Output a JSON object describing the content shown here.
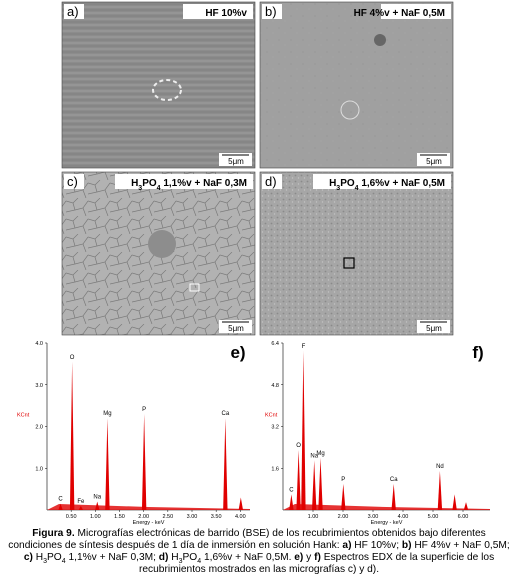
{
  "panels": [
    {
      "label": "a)",
      "condition": [
        {
          "text": "HF 10%v"
        }
      ],
      "scale": "5μm"
    },
    {
      "label": "b)",
      "condition": [
        {
          "text": "HF 4%v + NaF 0,5M"
        }
      ],
      "scale": "5μm"
    },
    {
      "label": "c)",
      "condition": [
        {
          "text": "H"
        },
        {
          "text": "3",
          "sub": true
        },
        {
          "text": "PO"
        },
        {
          "text": "4",
          "sub": true
        },
        {
          "text": " 1,1%v + NaF 0,3M"
        }
      ],
      "scale": "5μm"
    },
    {
      "label": "d)",
      "condition": [
        {
          "text": "H"
        },
        {
          "text": "3",
          "sub": true
        },
        {
          "text": "PO"
        },
        {
          "text": "4",
          "sub": true
        },
        {
          "text": " 1,6%v + NaF 0,5M"
        }
      ],
      "scale": "5μm"
    }
  ],
  "spectra": [
    {
      "label": "e)",
      "ylabel": "KCnt",
      "xlabel": "Energy - keV",
      "color": "#e00000",
      "xlim": [
        0,
        4.2
      ],
      "ylim": [
        0,
        4.0
      ],
      "xticks": [
        {
          "value": 0.5,
          "label": "0.50"
        },
        {
          "value": 1,
          "label": "1.00"
        },
        {
          "value": 1.5,
          "label": "1.50"
        },
        {
          "value": 2,
          "label": "2.00"
        },
        {
          "value": 2.5,
          "label": "2.50"
        },
        {
          "value": 3,
          "label": "3.00"
        },
        {
          "value": 3.5,
          "label": "3.50"
        },
        {
          "value": 4,
          "label": "4.00"
        }
      ],
      "yticks": [
        {
          "value": 1,
          "label": "1.0"
        },
        {
          "value": 2,
          "label": "2.0"
        },
        {
          "value": 3,
          "label": "3.0"
        },
        {
          "value": 4,
          "label": "4.0"
        }
      ],
      "peaks": [
        {
          "label": "C",
          "energy": 0.28,
          "counts": 0.15
        },
        {
          "label": "O",
          "energy": 0.52,
          "counts": 3.55
        },
        {
          "label": "Fe",
          "energy": 0.7,
          "counts": 0.1
        },
        {
          "label": "Na",
          "energy": 1.04,
          "counts": 0.2
        },
        {
          "label": "Mg",
          "energy": 1.25,
          "counts": 2.2
        },
        {
          "label": "P",
          "energy": 2.01,
          "counts": 2.3
        },
        {
          "label": "Ca",
          "energy": 3.69,
          "counts": 2.2
        },
        {
          "label": null,
          "energy": 4.01,
          "counts": 0.3
        }
      ]
    },
    {
      "label": "f)",
      "ylabel": "KCnt",
      "xlabel": "Energy - keV",
      "color": "#e00000",
      "xlim": [
        0,
        6.9
      ],
      "ylim": [
        0,
        6.4
      ],
      "xticks": [
        {
          "value": 1,
          "label": "1.00"
        },
        {
          "value": 2,
          "label": "2.00"
        },
        {
          "value": 3,
          "label": "3.00"
        },
        {
          "value": 4,
          "label": "4.00"
        },
        {
          "value": 5,
          "label": "5.00"
        },
        {
          "value": 6,
          "label": "6.00"
        }
      ],
      "yticks": [
        {
          "value": 1.6,
          "label": "1.6"
        },
        {
          "value": 3.2,
          "label": "3.2"
        },
        {
          "value": 4.8,
          "label": "4.8"
        },
        {
          "value": 6.4,
          "label": "6.4"
        }
      ],
      "peaks": [
        {
          "label": "C",
          "energy": 0.28,
          "counts": 0.6
        },
        {
          "label": "O",
          "energy": 0.52,
          "counts": 2.3
        },
        {
          "label": "F",
          "energy": 0.68,
          "counts": 6.1
        },
        {
          "label": "Na",
          "energy": 1.04,
          "counts": 1.9
        },
        {
          "label": "Mg",
          "energy": 1.25,
          "counts": 2.0
        },
        {
          "label": "P",
          "energy": 2.01,
          "counts": 1.0
        },
        {
          "label": "Ca",
          "energy": 3.69,
          "counts": 1.0
        },
        {
          "label": "Nd",
          "energy": 5.23,
          "counts": 1.5
        },
        {
          "label": null,
          "energy": 5.72,
          "counts": 0.6
        },
        {
          "label": null,
          "energy": 6.1,
          "counts": 0.3
        }
      ]
    }
  ],
  "caption": [
    {
      "text": "Figura 9.",
      "b": true
    },
    {
      "text": " Micrografías electrónicas de barrido (BSE) de los recubrimientos obtenidos bajo diferentes condiciones de síntesis después de 1 día de inmersión en solución Hank: "
    },
    {
      "text": "a)",
      "b": true
    },
    {
      "text": " HF 10%v; "
    },
    {
      "text": "b)",
      "b": true
    },
    {
      "text": " HF 4%v + NaF 0,5M; "
    },
    {
      "text": "c)",
      "b": true
    },
    {
      "text": " H"
    },
    {
      "text": "3",
      "sub": true
    },
    {
      "text": "PO"
    },
    {
      "text": "4",
      "sub": true
    },
    {
      "text": " 1,1%v + NaF 0,3M; "
    },
    {
      "text": "d)",
      "b": true
    },
    {
      "text": " H"
    },
    {
      "text": "3",
      "sub": true
    },
    {
      "text": "PO"
    },
    {
      "text": "4",
      "sub": true
    },
    {
      "text": " 1,6%v + NaF 0,5M. "
    },
    {
      "text": "e)",
      "b": true
    },
    {
      "text": " y "
    },
    {
      "text": "f)",
      "b": true
    },
    {
      "text": " Espectros EDX de la superficie de los recubrimientos mostrados en las micrografías c) y d)."
    }
  ]
}
